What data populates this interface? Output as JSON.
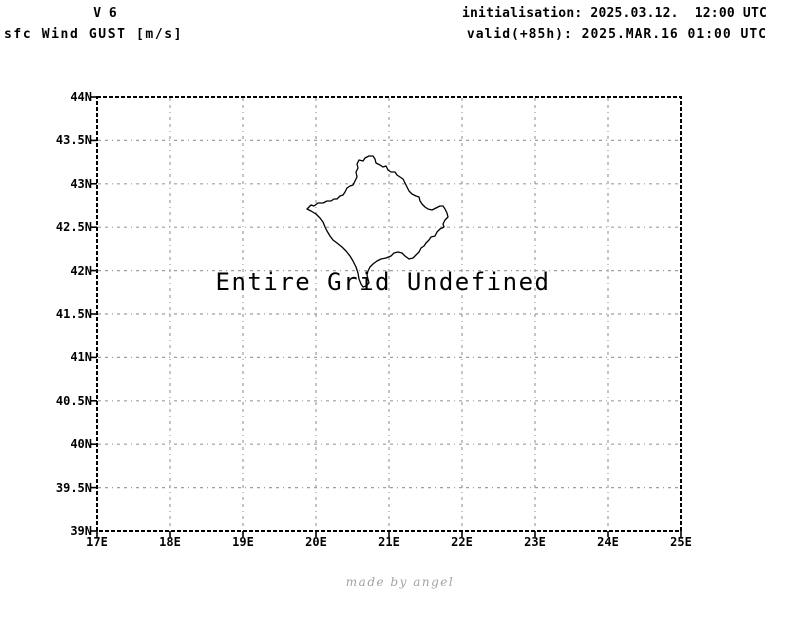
{
  "header": {
    "model_version": "V 6",
    "variable": "sfc Wind GUST [m/s]",
    "init_line": "initialisation: 2025.03.12.  12:00 UTC",
    "valid_line": "valid(+85h): 2025.MAR.16 01:00 UTC"
  },
  "chart_data": {
    "type": "map",
    "title": "sfc Wind GUST [m/s]",
    "annotation": "Entire Grid Undefined",
    "map_outline": "Kosovo border",
    "grid": "on",
    "x_axis": {
      "ticks": [
        "17E",
        "18E",
        "19E",
        "20E",
        "21E",
        "22E",
        "23E",
        "24E",
        "25E"
      ],
      "range_deg_east": [
        17,
        25
      ]
    },
    "y_axis": {
      "ticks": [
        "44N",
        "43.5N",
        "43N",
        "42.5N",
        "42N",
        "41.5N",
        "41N",
        "40.5N",
        "40N",
        "39.5N",
        "39N"
      ],
      "range_deg_north": [
        39,
        44
      ]
    },
    "series": [],
    "colors": {
      "frame": "#000000",
      "grid": "#9e9e9e",
      "outline": "#000000",
      "text": "#000000",
      "credit": "#a3a3a3"
    }
  },
  "footer": {
    "credit": "made by angel"
  }
}
